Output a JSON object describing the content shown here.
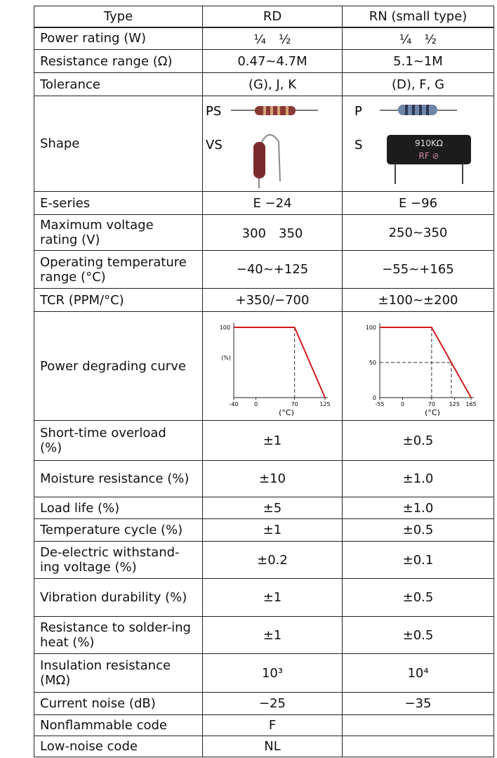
{
  "table": {
    "header": [
      "Type",
      "RD",
      "RN (small type)"
    ],
    "rows": [
      {
        "label": "Power rating (W)",
        "rd": "¼　½",
        "rn": "¼　½"
      },
      {
        "label": "Resistance range (Ω)",
        "rd": "0.47~4.7M",
        "rn": "5.1~1M"
      },
      {
        "label": "Tolerance",
        "rd": "(G), J, K",
        "rn": "(D), F, G"
      },
      {
        "label": "Shape",
        "rd": {
          "top": "PS",
          "bottom": "VS"
        },
        "rn": {
          "top": "P",
          "bottom": "S",
          "marking": [
            "910KΩ",
            "RF ⊘"
          ]
        }
      },
      {
        "label": "E-series",
        "rd": "E −24",
        "rn": "E −96"
      },
      {
        "label": "Maximum voltage rating (V)",
        "rd": "300　350",
        "rn": "250~350"
      },
      {
        "label": "Operating temperature range (°C)",
        "rd": "−40~+125",
        "rn": "−55~+165"
      },
      {
        "label": "TCR (PPM/°C)",
        "rd": "+350/−700",
        "rn": "±100~±200"
      },
      {
        "label": "Power degrading curve",
        "rd": {
          "y_ticks": [
            100
          ],
          "y_unit": "(%)",
          "x_ticks": [
            -40,
            0,
            70,
            125
          ],
          "x_unit": "(°C)",
          "x": [
            -40,
            70,
            125
          ],
          "y": [
            100,
            100,
            0
          ]
        },
        "rn": {
          "y_ticks": [
            0,
            50,
            100
          ],
          "x_ticks": [
            -55,
            0,
            70,
            125,
            165
          ],
          "x_unit": "(°C)",
          "x": [
            -55,
            70,
            165
          ],
          "y": [
            100,
            100,
            0
          ]
        }
      },
      {
        "label": "Short-time overload (%)",
        "rd": "±1",
        "rn": "±0.5"
      },
      {
        "label": "Moisture resistance (%)",
        "rd": "±10",
        "rn": "±1.0"
      },
      {
        "label": "Load life (%)",
        "rd": "±5",
        "rn": "±1.0"
      },
      {
        "label": "Temperature cycle (%)",
        "rd": "±1",
        "rn": "±0.5"
      },
      {
        "label": "De-electric withstand-ing voltage (%)",
        "rd": "±0.2",
        "rn": "±0.1"
      },
      {
        "label": "Vibration durability (%)",
        "rd": "±1",
        "rn": "±0.5"
      },
      {
        "label": "Resistance to solder-ing heat (%)",
        "rd": "±1",
        "rn": "±0.5"
      },
      {
        "label": "Insulation resistance (MΩ)",
        "rd": "10³",
        "rn": "10⁴"
      },
      {
        "label": "Current noise (dB)",
        "rd": "−25",
        "rn": "−35"
      },
      {
        "label": "Nonflammable code",
        "rd": "F"
      },
      {
        "label": "Low-noise code",
        "rd": "NL"
      }
    ]
  }
}
